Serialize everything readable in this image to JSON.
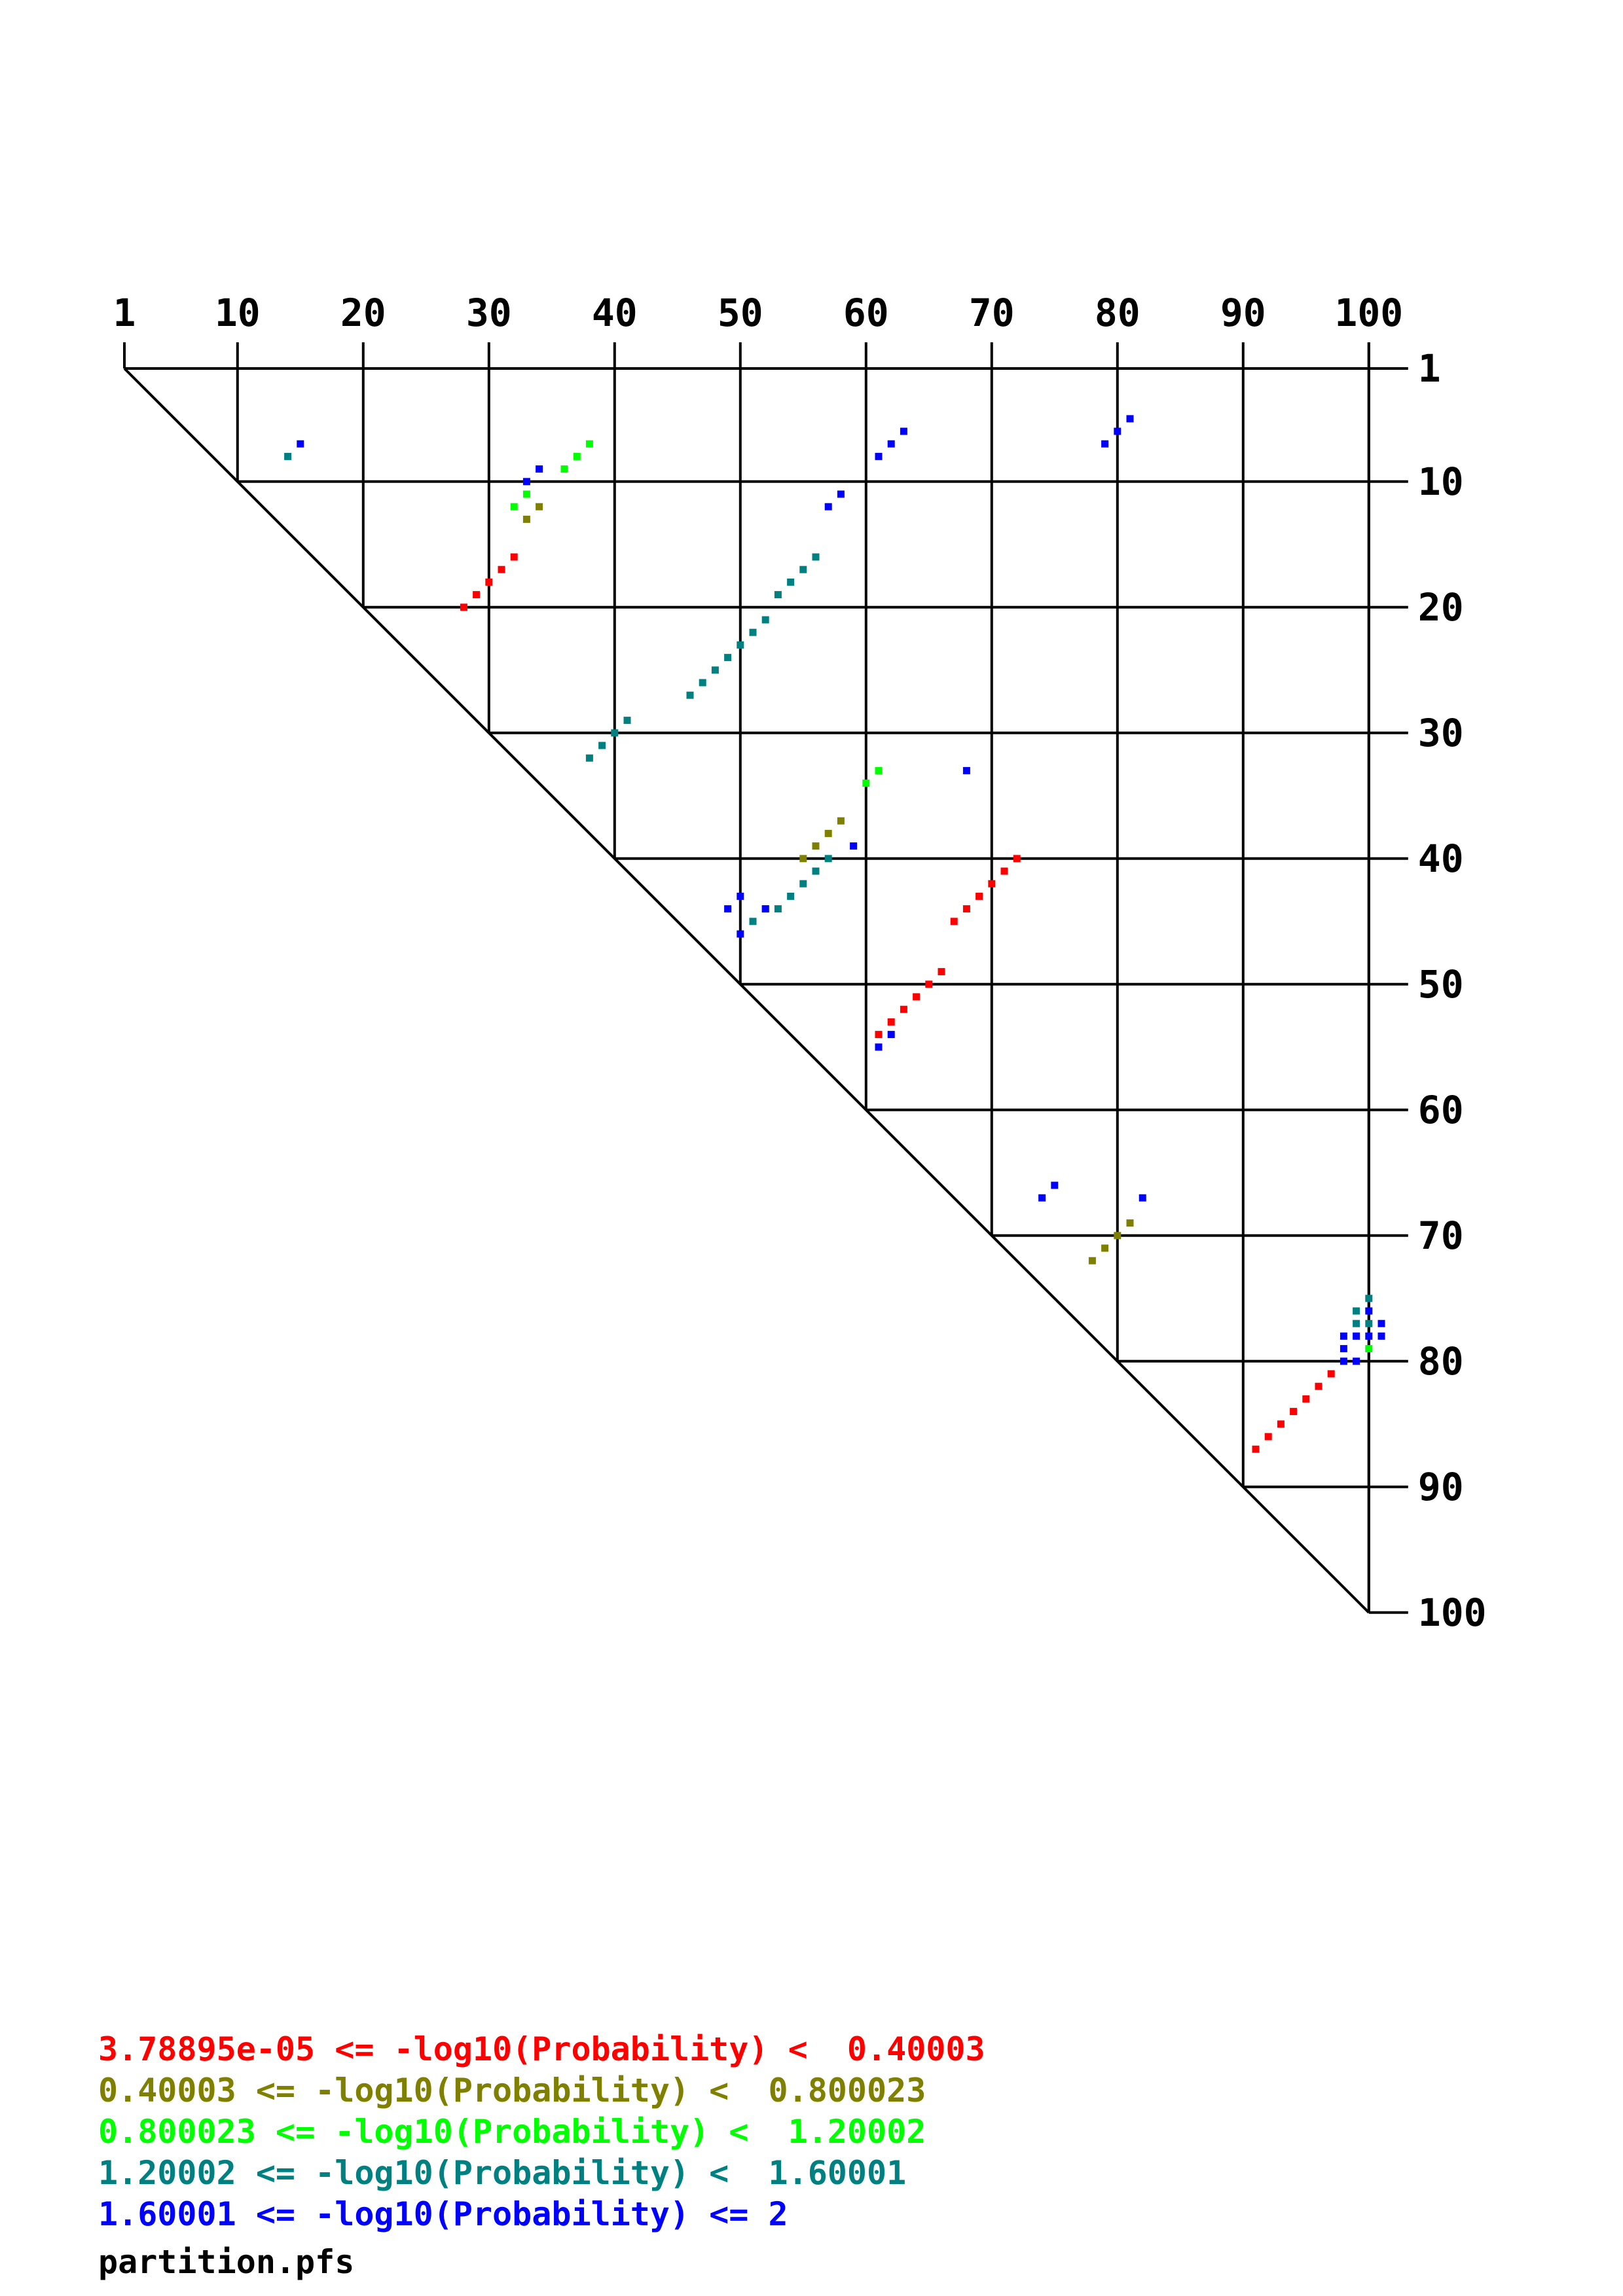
{
  "chart_data": {
    "type": "scatter",
    "x_ticks": [
      "1",
      "10",
      "20",
      "30",
      "40",
      "50",
      "60",
      "70",
      "80",
      "90",
      "100"
    ],
    "y_ticks": [
      "1",
      "10",
      "20",
      "30",
      "40",
      "50",
      "60",
      "70",
      "80",
      "90",
      "100"
    ],
    "xlim": [
      1,
      100
    ],
    "ylim": [
      1,
      100
    ],
    "grid": true,
    "legend_location": "bottom-left",
    "filename": "partition.pfs",
    "legend": [
      {
        "label": "3.78895e-05 <= -log10(Probability) <  0.40003",
        "color": "#ff0000"
      },
      {
        "label": "0.40003 <= -log10(Probability) <  0.800023",
        "color": "#808000"
      },
      {
        "label": "0.800023 <= -log10(Probability) <  1.20002",
        "color": "#00ff00"
      },
      {
        "label": "1.20002 <= -log10(Probability) <  1.60001",
        "color": "#008080"
      },
      {
        "label": "1.60001 <= -log10(Probability) <= 2",
        "color": "#0000ff"
      }
    ],
    "series": [
      {
        "color": "#ff0000",
        "points": [
          [
            28,
            20
          ],
          [
            29,
            19
          ],
          [
            30,
            18
          ],
          [
            31,
            17
          ],
          [
            32,
            16
          ],
          [
            61,
            54
          ],
          [
            62,
            53
          ],
          [
            63,
            52
          ],
          [
            64,
            51
          ],
          [
            65,
            50
          ],
          [
            66,
            49
          ],
          [
            67,
            45
          ],
          [
            68,
            44
          ],
          [
            69,
            43
          ],
          [
            70,
            42
          ],
          [
            71,
            41
          ],
          [
            72,
            40
          ],
          [
            91,
            87
          ],
          [
            92,
            86
          ],
          [
            93,
            85
          ],
          [
            94,
            84
          ],
          [
            95,
            83
          ],
          [
            96,
            82
          ],
          [
            97,
            81
          ]
        ]
      },
      {
        "color": "#808000",
        "points": [
          [
            33,
            13
          ],
          [
            34,
            12
          ],
          [
            55,
            40
          ],
          [
            56,
            39
          ],
          [
            57,
            38
          ],
          [
            58,
            37
          ],
          [
            78,
            72
          ],
          [
            79,
            71
          ],
          [
            80,
            70
          ],
          [
            81,
            69
          ]
        ]
      },
      {
        "color": "#00ff00",
        "points": [
          [
            32,
            12
          ],
          [
            33,
            11
          ],
          [
            36,
            9
          ],
          [
            37,
            8
          ],
          [
            38,
            7
          ],
          [
            60,
            34
          ],
          [
            61,
            33
          ],
          [
            100,
            79
          ]
        ]
      },
      {
        "color": "#008080",
        "points": [
          [
            14,
            8
          ],
          [
            46,
            27
          ],
          [
            47,
            26
          ],
          [
            48,
            25
          ],
          [
            49,
            24
          ],
          [
            50,
            23
          ],
          [
            51,
            22
          ],
          [
            52,
            21
          ],
          [
            53,
            19
          ],
          [
            54,
            18
          ],
          [
            55,
            17
          ],
          [
            56,
            16
          ],
          [
            38,
            32
          ],
          [
            39,
            31
          ],
          [
            40,
            30
          ],
          [
            41,
            29
          ],
          [
            51,
            45
          ],
          [
            52,
            44
          ],
          [
            53,
            44
          ],
          [
            54,
            43
          ],
          [
            55,
            42
          ],
          [
            56,
            41
          ],
          [
            57,
            40
          ],
          [
            99,
            76
          ],
          [
            99,
            77
          ],
          [
            100,
            75
          ],
          [
            100,
            77
          ]
        ]
      },
      {
        "color": "#0000ff",
        "points": [
          [
            15,
            7
          ],
          [
            33,
            10
          ],
          [
            34,
            9
          ],
          [
            61,
            8
          ],
          [
            62,
            7
          ],
          [
            63,
            6
          ],
          [
            57,
            12
          ],
          [
            58,
            11
          ],
          [
            79,
            7
          ],
          [
            80,
            6
          ],
          [
            81,
            5
          ],
          [
            68,
            33
          ],
          [
            59,
            39
          ],
          [
            49,
            44
          ],
          [
            50,
            43
          ],
          [
            50,
            46
          ],
          [
            52,
            44
          ],
          [
            61,
            55
          ],
          [
            62,
            54
          ],
          [
            74,
            67
          ],
          [
            75,
            66
          ],
          [
            82,
            67
          ],
          [
            98,
            78
          ],
          [
            98,
            79
          ],
          [
            98,
            80
          ],
          [
            99,
            78
          ],
          [
            99,
            80
          ],
          [
            100,
            76
          ],
          [
            100,
            78
          ],
          [
            101,
            77
          ],
          [
            101,
            78
          ]
        ]
      }
    ]
  }
}
